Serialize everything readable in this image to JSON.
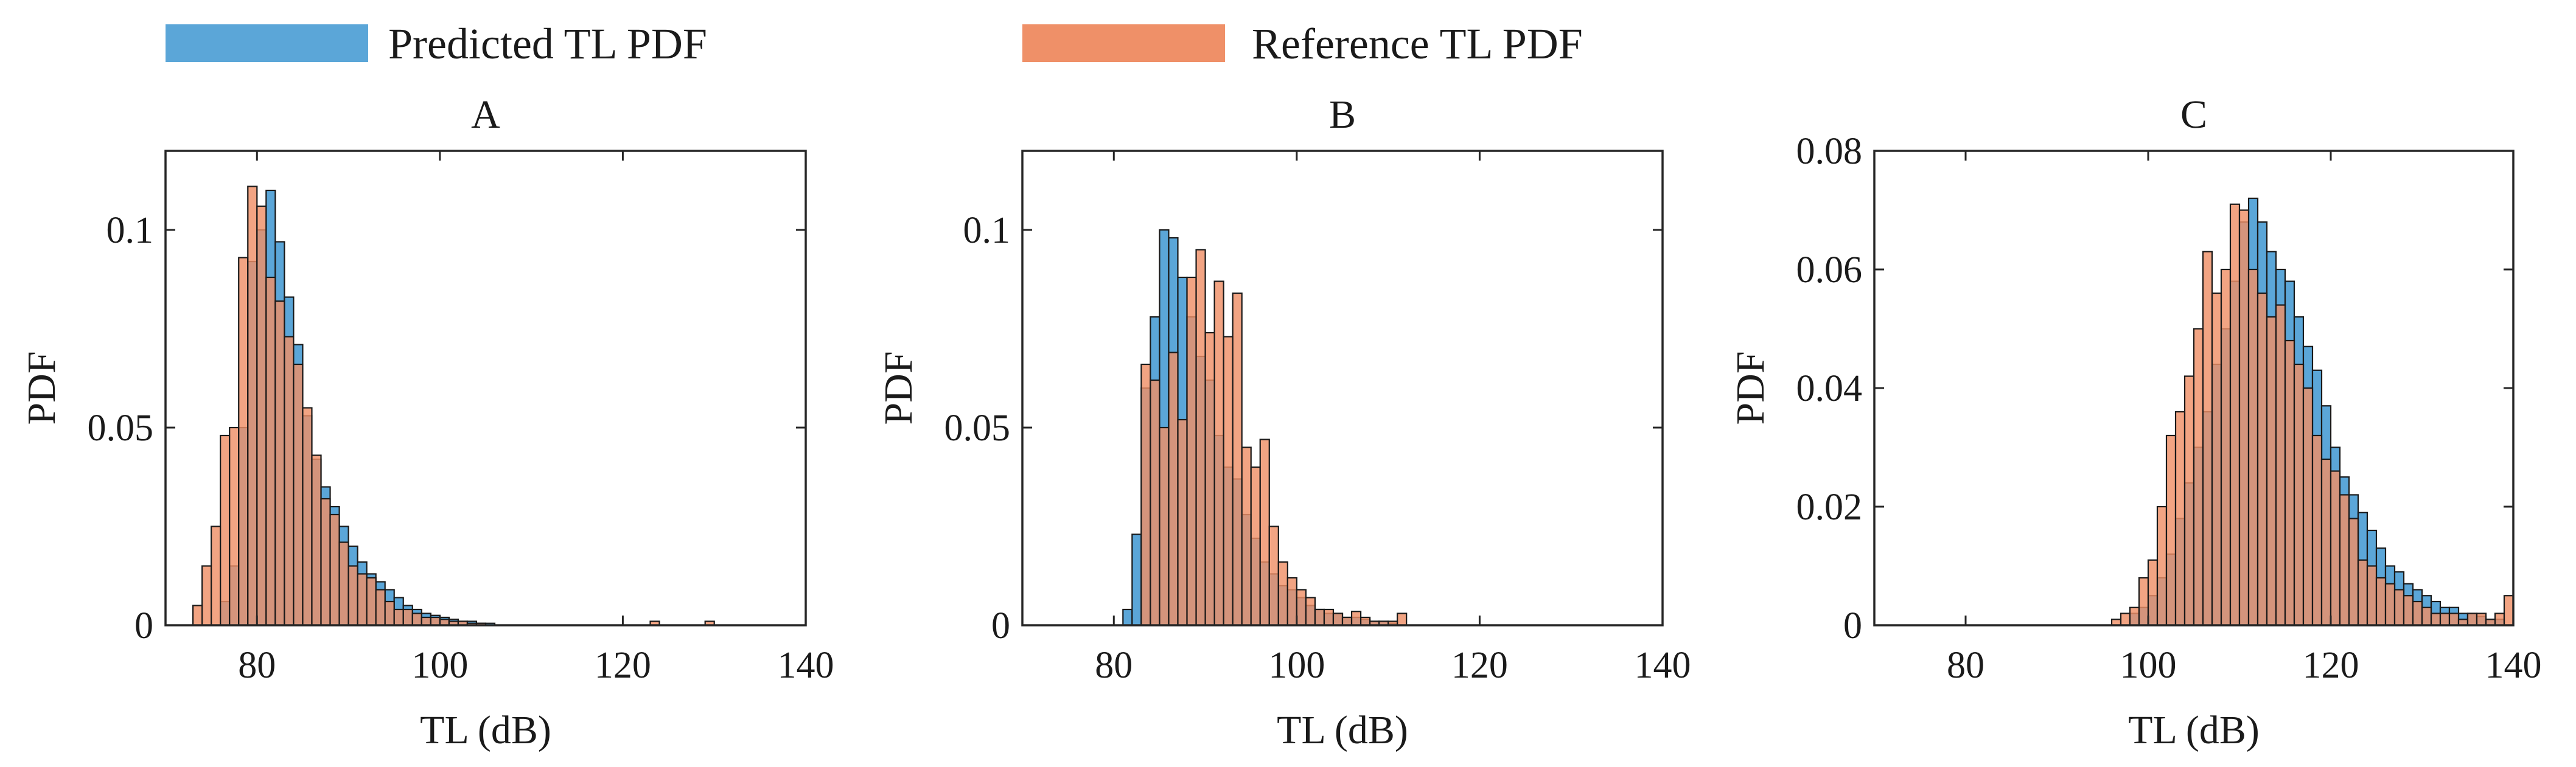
{
  "legend": {
    "items": [
      {
        "label": "Predicted TL PDF",
        "color": "#5BA6D8"
      },
      {
        "label": "Reference TL PDF",
        "color": "#EF9068"
      }
    ]
  },
  "colors": {
    "axis": "#262626",
    "bar_edge": "#1a1a1a",
    "overlap": "#A87F63"
  },
  "chart_data": [
    {
      "type": "bar",
      "title": "A",
      "xlabel": "TL (dB)",
      "ylabel": "PDF",
      "xlim": [
        70,
        140
      ],
      "ylim": [
        0,
        0.12
      ],
      "xticks": [
        80,
        100,
        120,
        140
      ],
      "xtick_labels": [
        "80",
        "100",
        "120",
        "140"
      ],
      "yticks": [
        0,
        0.05,
        0.1
      ],
      "ytick_labels": [
        "0",
        "0.05",
        "0.1"
      ],
      "bin_width": 1,
      "series": [
        {
          "name": "Predicted TL PDF",
          "bins": [
            [
              76,
              0.006
            ],
            [
              77,
              0.015
            ],
            [
              78,
              0.05
            ],
            [
              79,
              0.092
            ],
            [
              80,
              0.1
            ],
            [
              81,
              0.11
            ],
            [
              82,
              0.097
            ],
            [
              83,
              0.083
            ],
            [
              84,
              0.071
            ],
            [
              85,
              0.053
            ],
            [
              86,
              0.042
            ],
            [
              87,
              0.035
            ],
            [
              88,
              0.03
            ],
            [
              89,
              0.025
            ],
            [
              90,
              0.02
            ],
            [
              91,
              0.016
            ],
            [
              92,
              0.013
            ],
            [
              93,
              0.011
            ],
            [
              94,
              0.009
            ],
            [
              95,
              0.007
            ],
            [
              96,
              0.005
            ],
            [
              97,
              0.004
            ],
            [
              98,
              0.003
            ],
            [
              99,
              0.0025
            ],
            [
              100,
              0.002
            ],
            [
              101,
              0.0015
            ],
            [
              102,
              0.001
            ],
            [
              103,
              0.001
            ],
            [
              104,
              0.0005
            ],
            [
              105,
              0.0005
            ]
          ]
        },
        {
          "name": "Reference TL PDF",
          "bins": [
            [
              73,
              0.005
            ],
            [
              74,
              0.015
            ],
            [
              75,
              0.025
            ],
            [
              76,
              0.048
            ],
            [
              77,
              0.05
            ],
            [
              78,
              0.093
            ],
            [
              79,
              0.111
            ],
            [
              80,
              0.106
            ],
            [
              81,
              0.088
            ],
            [
              82,
              0.082
            ],
            [
              83,
              0.073
            ],
            [
              84,
              0.066
            ],
            [
              85,
              0.055
            ],
            [
              86,
              0.043
            ],
            [
              87,
              0.032
            ],
            [
              88,
              0.028
            ],
            [
              89,
              0.021
            ],
            [
              90,
              0.015
            ],
            [
              91,
              0.013
            ],
            [
              92,
              0.012
            ],
            [
              93,
              0.009
            ],
            [
              94,
              0.006
            ],
            [
              95,
              0.004
            ],
            [
              96,
              0.004
            ],
            [
              97,
              0.003
            ],
            [
              98,
              0.002
            ],
            [
              99,
              0.002
            ],
            [
              100,
              0.0015
            ],
            [
              101,
              0.001
            ],
            [
              102,
              0.001
            ],
            [
              103,
              0.0005
            ],
            [
              104,
              0.0005
            ],
            [
              123,
              0.001
            ],
            [
              129,
              0.001
            ]
          ]
        }
      ]
    },
    {
      "type": "bar",
      "title": "B",
      "xlabel": "TL (dB)",
      "ylabel": "PDF",
      "xlim": [
        70,
        140
      ],
      "ylim": [
        0,
        0.12
      ],
      "xticks": [
        80,
        100,
        120,
        140
      ],
      "xtick_labels": [
        "80",
        "100",
        "120",
        "140"
      ],
      "yticks": [
        0,
        0.05,
        0.1
      ],
      "ytick_labels": [
        "0",
        "0.05",
        "0.1"
      ],
      "bin_width": 1,
      "series": [
        {
          "name": "Predicted TL PDF",
          "bins": [
            [
              81,
              0.004
            ],
            [
              82,
              0.023
            ],
            [
              83,
              0.06
            ],
            [
              84,
              0.078
            ],
            [
              85,
              0.1
            ],
            [
              86,
              0.098
            ],
            [
              87,
              0.088
            ],
            [
              88,
              0.078
            ],
            [
              89,
              0.068
            ],
            [
              90,
              0.062
            ],
            [
              91,
              0.048
            ],
            [
              92,
              0.04
            ],
            [
              93,
              0.037
            ],
            [
              94,
              0.028
            ],
            [
              95,
              0.022
            ],
            [
              96,
              0.016
            ],
            [
              97,
              0.013
            ],
            [
              98,
              0.01
            ],
            [
              99,
              0.009
            ],
            [
              100,
              0.007
            ],
            [
              101,
              0.005
            ],
            [
              102,
              0.004
            ],
            [
              103,
              0.003
            ],
            [
              104,
              0.003
            ],
            [
              105,
              0.002
            ],
            [
              106,
              0.002
            ],
            [
              107,
              0.0015
            ],
            [
              108,
              0.001
            ],
            [
              109,
              0.001
            ],
            [
              110,
              0.0005
            ]
          ]
        },
        {
          "name": "Reference TL PDF",
          "bins": [
            [
              83,
              0.066
            ],
            [
              84,
              0.062
            ],
            [
              85,
              0.05
            ],
            [
              86,
              0.069
            ],
            [
              87,
              0.052
            ],
            [
              88,
              0.088
            ],
            [
              89,
              0.095
            ],
            [
              90,
              0.074
            ],
            [
              91,
              0.087
            ],
            [
              92,
              0.073
            ],
            [
              93,
              0.084
            ],
            [
              94,
              0.045
            ],
            [
              95,
              0.04
            ],
            [
              96,
              0.047
            ],
            [
              97,
              0.025
            ],
            [
              98,
              0.016
            ],
            [
              99,
              0.012
            ],
            [
              100,
              0.009
            ],
            [
              101,
              0.007
            ],
            [
              102,
              0.004
            ],
            [
              103,
              0.004
            ],
            [
              104,
              0.003
            ],
            [
              105,
              0.002
            ],
            [
              106,
              0.0035
            ],
            [
              107,
              0.002
            ],
            [
              108,
              0.001
            ],
            [
              109,
              0.001
            ],
            [
              110,
              0.001
            ],
            [
              111,
              0.003
            ]
          ]
        }
      ]
    },
    {
      "type": "bar",
      "title": "C",
      "xlabel": "TL (dB)",
      "ylabel": "PDF",
      "xlim": [
        70,
        140
      ],
      "ylim": [
        0,
        0.08
      ],
      "xticks": [
        80,
        100,
        120,
        140
      ],
      "xtick_labels": [
        "80",
        "100",
        "120",
        "140"
      ],
      "yticks": [
        0,
        0.02,
        0.04,
        0.06,
        0.08
      ],
      "ytick_labels": [
        "0",
        "0.02",
        "0.04",
        "0.06",
        "0.08"
      ],
      "bin_width": 1,
      "series": [
        {
          "name": "Predicted TL PDF",
          "bins": [
            [
              98,
              0.002
            ],
            [
              99,
              0.003
            ],
            [
              100,
              0.005
            ],
            [
              101,
              0.008
            ],
            [
              102,
              0.012
            ],
            [
              103,
              0.018
            ],
            [
              104,
              0.024
            ],
            [
              105,
              0.03
            ],
            [
              106,
              0.036
            ],
            [
              107,
              0.044
            ],
            [
              108,
              0.05
            ],
            [
              109,
              0.058
            ],
            [
              110,
              0.068
            ],
            [
              111,
              0.072
            ],
            [
              112,
              0.068
            ],
            [
              113,
              0.063
            ],
            [
              114,
              0.06
            ],
            [
              115,
              0.058
            ],
            [
              116,
              0.052
            ],
            [
              117,
              0.047
            ],
            [
              118,
              0.043
            ],
            [
              119,
              0.037
            ],
            [
              120,
              0.03
            ],
            [
              121,
              0.025
            ],
            [
              122,
              0.022
            ],
            [
              123,
              0.019
            ],
            [
              124,
              0.016
            ],
            [
              125,
              0.013
            ],
            [
              126,
              0.01
            ],
            [
              127,
              0.009
            ],
            [
              128,
              0.007
            ],
            [
              129,
              0.006
            ],
            [
              130,
              0.005
            ],
            [
              131,
              0.004
            ],
            [
              132,
              0.003
            ],
            [
              133,
              0.003
            ],
            [
              134,
              0.002
            ],
            [
              135,
              0.002
            ],
            [
              136,
              0.0015
            ],
            [
              137,
              0.001
            ],
            [
              138,
              0.001
            ]
          ]
        },
        {
          "name": "Reference TL PDF",
          "bins": [
            [
              96,
              0.001
            ],
            [
              97,
              0.002
            ],
            [
              98,
              0.003
            ],
            [
              99,
              0.008
            ],
            [
              100,
              0.011
            ],
            [
              101,
              0.02
            ],
            [
              102,
              0.032
            ],
            [
              103,
              0.036
            ],
            [
              104,
              0.042
            ],
            [
              105,
              0.05
            ],
            [
              106,
              0.063
            ],
            [
              107,
              0.056
            ],
            [
              108,
              0.06
            ],
            [
              109,
              0.071
            ],
            [
              110,
              0.07
            ],
            [
              111,
              0.06
            ],
            [
              112,
              0.056
            ],
            [
              113,
              0.052
            ],
            [
              114,
              0.054
            ],
            [
              115,
              0.048
            ],
            [
              116,
              0.044
            ],
            [
              117,
              0.04
            ],
            [
              118,
              0.032
            ],
            [
              119,
              0.028
            ],
            [
              120,
              0.026
            ],
            [
              121,
              0.022
            ],
            [
              122,
              0.018
            ],
            [
              123,
              0.011
            ],
            [
              124,
              0.01
            ],
            [
              125,
              0.008
            ],
            [
              126,
              0.007
            ],
            [
              127,
              0.006
            ],
            [
              128,
              0.005
            ],
            [
              129,
              0.004
            ],
            [
              130,
              0.003
            ],
            [
              131,
              0.002
            ],
            [
              132,
              0.002
            ],
            [
              133,
              0.002
            ],
            [
              134,
              0.001
            ],
            [
              135,
              0.002
            ],
            [
              136,
              0.002
            ],
            [
              137,
              0.001
            ],
            [
              138,
              0.002
            ],
            [
              139,
              0.005
            ]
          ]
        }
      ]
    }
  ]
}
